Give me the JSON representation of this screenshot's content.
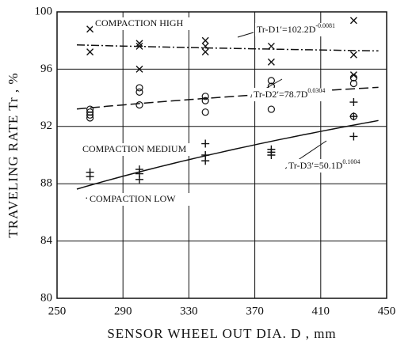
{
  "chart_data": {
    "type": "scatter",
    "xlabel": "SENSOR WHEEL OUT DIA. D , mm",
    "ylabel": "TRAVELING RATE Tr , %",
    "xlim": [
      250,
      450
    ],
    "ylim": [
      80,
      100
    ],
    "xticks": [
      250,
      290,
      330,
      370,
      410,
      450
    ],
    "yticks": [
      80,
      84,
      88,
      92,
      96,
      100
    ],
    "grid": true,
    "series": [
      {
        "name": "COMPACTION HIGH",
        "marker": "x",
        "color": "#111111",
        "x": [
          270,
          270,
          300,
          300,
          300,
          340,
          340,
          340,
          380,
          380,
          380,
          430,
          430,
          430
        ],
        "values": [
          98.8,
          97.2,
          97.8,
          97.6,
          96.0,
          98.0,
          97.6,
          97.2,
          98.6,
          97.6,
          96.5,
          99.4,
          97.0,
          95.6
        ],
        "fit": {
          "lhs": "Tr-D1′=",
          "coef": 102.2,
          "var": "D",
          "exp": -0.0081,
          "domain": [
            262,
            445
          ],
          "dash": "10 3 2 3"
        }
      },
      {
        "name": "COMPACTION MEDIUM",
        "marker": "o",
        "color": "#111111",
        "x": [
          270,
          270,
          270,
          270,
          300,
          300,
          300,
          340,
          340,
          340,
          380,
          380,
          380,
          380,
          430,
          430,
          430
        ],
        "values": [
          93.2,
          93.0,
          92.8,
          92.6,
          94.7,
          94.4,
          93.5,
          94.1,
          93.8,
          93.0,
          95.2,
          94.8,
          94.4,
          93.2,
          95.4,
          95.0,
          92.7
        ],
        "fit": {
          "lhs": "Tr-D2′=",
          "coef": 78.7,
          "var": "D",
          "exp": 0.0304,
          "domain": [
            262,
            445
          ],
          "dash": "12 5"
        }
      },
      {
        "name": "COMPACTION LOW",
        "marker": "+",
        "color": "#111111",
        "x": [
          270,
          270,
          270,
          300,
          300,
          300,
          340,
          340,
          340,
          380,
          380,
          380,
          430,
          430,
          430
        ],
        "values": [
          88.8,
          88.5,
          87.0,
          89.0,
          88.7,
          88.3,
          90.8,
          90.0,
          89.6,
          90.4,
          90.2,
          90.0,
          93.7,
          92.7,
          91.3
        ],
        "fit": {
          "lhs": "Tr-D3′=",
          "coef": 50.1,
          "var": "D",
          "exp": 0.1004,
          "domain": [
            262,
            445
          ],
          "dash": ""
        }
      }
    ]
  }
}
